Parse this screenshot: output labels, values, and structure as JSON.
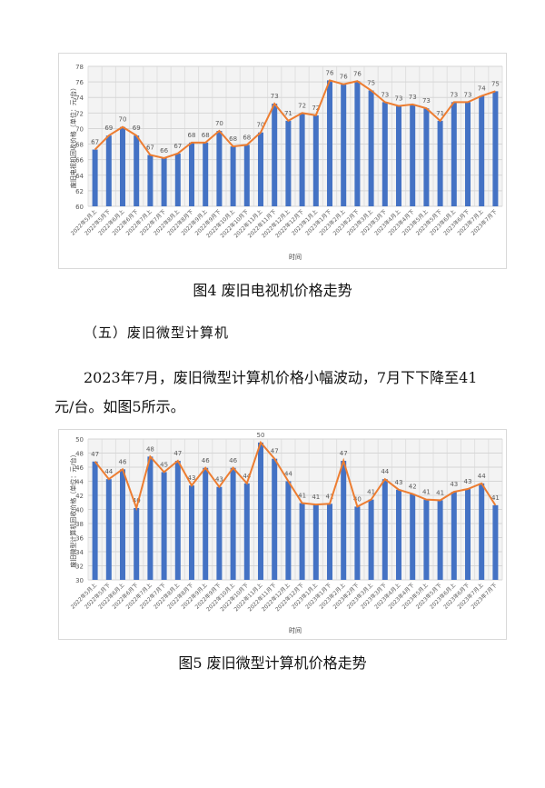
{
  "chart_data": [
    {
      "type": "bar",
      "title": "",
      "xlabel": "时间",
      "ylabel": "废旧电视机回收价格（单位：元/台）",
      "ylim": [
        60,
        78
      ],
      "yticks": [
        60,
        62,
        64,
        66,
        68,
        70,
        72,
        74,
        76,
        78
      ],
      "grid": true,
      "overlay_line": true,
      "colors": {
        "bar": "#4472c4",
        "line": "#ed7d31"
      },
      "categories": [
        "2022年5月上",
        "2022年5月下",
        "2022年6月上",
        "2022年6月下",
        "2022年7月上",
        "2022年7月下",
        "2022年8月上",
        "2022年8月下",
        "2022年9月上",
        "2022年9月下",
        "2022年10月上",
        "2022年10月下",
        "2022年11月上",
        "2022年11月下",
        "2022年12月上",
        "2022年12月下",
        "2023年1月上",
        "2023年1月下",
        "2023年2月上",
        "2023年2月下",
        "2023年3月上",
        "2023年3月下",
        "2023年4月上",
        "2023年4月下",
        "2023年5月上",
        "2023年5月下",
        "2023年6月上",
        "2023年6月下",
        "2023年7月上",
        "2023年7月下"
      ],
      "values": [
        67.3,
        69.1,
        70.2,
        69.1,
        66.6,
        66.2,
        66.8,
        68.2,
        68.2,
        69.7,
        67.7,
        67.9,
        69.5,
        73.2,
        71.0,
        72.0,
        71.7,
        76.2,
        75.7,
        76.1,
        74.9,
        73.4,
        72.9,
        73.1,
        72.6,
        71.0,
        73.4,
        73.4,
        74.2,
        74.8
      ],
      "data_labels": [
        "67",
        "69",
        "70",
        "69",
        "67",
        "66",
        "67",
        "68",
        "68",
        "70",
        "68",
        "68",
        "70",
        "73",
        "71",
        "72",
        "72",
        "76",
        "76",
        "76",
        "75",
        "73",
        "73",
        "73",
        "73",
        "71",
        "73",
        "73",
        "74",
        "75"
      ]
    },
    {
      "type": "bar",
      "title": "",
      "xlabel": "时间",
      "ylabel": "废旧微型计算机回收价格（单位：元/台）",
      "ylim": [
        30,
        50
      ],
      "yticks": [
        30,
        32,
        34,
        36,
        38,
        40,
        42,
        44,
        46,
        48,
        50
      ],
      "grid": true,
      "overlay_line": true,
      "colors": {
        "bar": "#4472c4",
        "line": "#ed7d31"
      },
      "categories": [
        "2022年5月上",
        "2022年5月下",
        "2022年6月上",
        "2022年6月下",
        "2022年7月上",
        "2022年7月下",
        "2022年8月上",
        "2022年8月下",
        "2022年9月上",
        "2022年9月下",
        "2022年10月上",
        "2022年10月下",
        "2022年11月上",
        "2022年11月下",
        "2022年12月上",
        "2022年12月下",
        "2023年1月上",
        "2023年1月下",
        "2023年2月上",
        "2023年2月下",
        "2023年3月上",
        "2023年3月下",
        "2023年4月上",
        "2023年4月下",
        "2023年5月上",
        "2023年5月下",
        "2023年6月上",
        "2023年6月下",
        "2023年7月上",
        "2023年7月下"
      ],
      "values": [
        46.8,
        44.3,
        45.7,
        40.2,
        47.5,
        45.3,
        46.9,
        43.4,
        45.9,
        43.2,
        45.9,
        43.7,
        49.5,
        47.2,
        44.0,
        40.9,
        40.7,
        40.8,
        46.9,
        40.4,
        41.4,
        44.3,
        42.8,
        42.2,
        41.4,
        41.3,
        42.5,
        42.9,
        43.7,
        40.6
      ],
      "data_labels": [
        "47",
        "44",
        "46",
        "40",
        "48",
        "45",
        "47",
        "43",
        "46",
        "43",
        "46",
        "44",
        "50",
        "47",
        "44",
        "41",
        "41",
        "41",
        "47",
        "40",
        "41",
        "44",
        "43",
        "42",
        "41",
        "41",
        "43",
        "43",
        "44",
        "41"
      ]
    }
  ],
  "document": {
    "figure4_caption": "图4  废旧电视机价格走势",
    "section_heading": "（五）废旧微型计算机",
    "paragraph": "2023年7月，废旧微型计算机价格小幅波动，7月下下降至41元/台。如图5所示。",
    "figure5_caption": "图5  废旧微型计算机价格走势"
  }
}
